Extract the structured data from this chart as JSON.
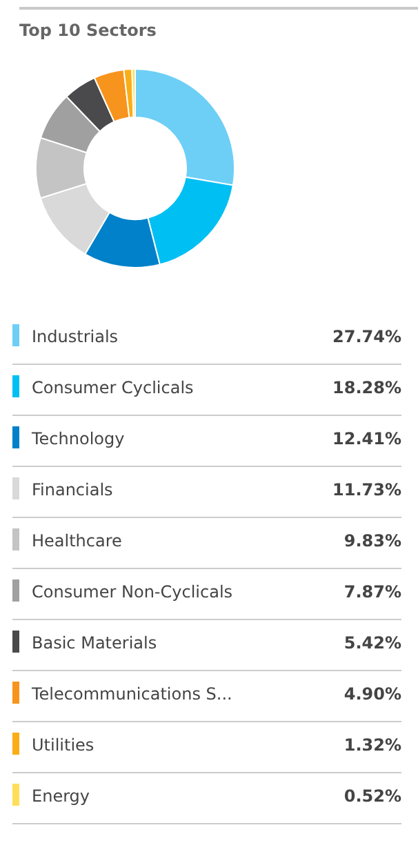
{
  "chart_data": {
    "type": "donut",
    "title": "Top 10 Sectors",
    "categories": [
      "Industrials",
      "Consumer Cyclicals",
      "Technology",
      "Financials",
      "Healthcare",
      "Consumer Non-Cyclicals",
      "Basic Materials",
      "Telecommunications S...",
      "Utilities",
      "Energy"
    ],
    "values": [
      27.74,
      18.28,
      12.41,
      11.73,
      9.83,
      7.87,
      5.42,
      4.9,
      1.32,
      0.52
    ],
    "value_labels": [
      "27.74%",
      "18.28%",
      "12.41%",
      "11.73%",
      "9.83%",
      "7.87%",
      "5.42%",
      "4.90%",
      "1.32%",
      "0.52%"
    ],
    "colors": [
      "#6dcff6",
      "#00bff3",
      "#0081c9",
      "#d9d9d9",
      "#c4c4c4",
      "#a0a0a0",
      "#4a4a4c",
      "#f7941d",
      "#fbad18",
      "#ffdf5a"
    ],
    "legend": "bottom"
  }
}
